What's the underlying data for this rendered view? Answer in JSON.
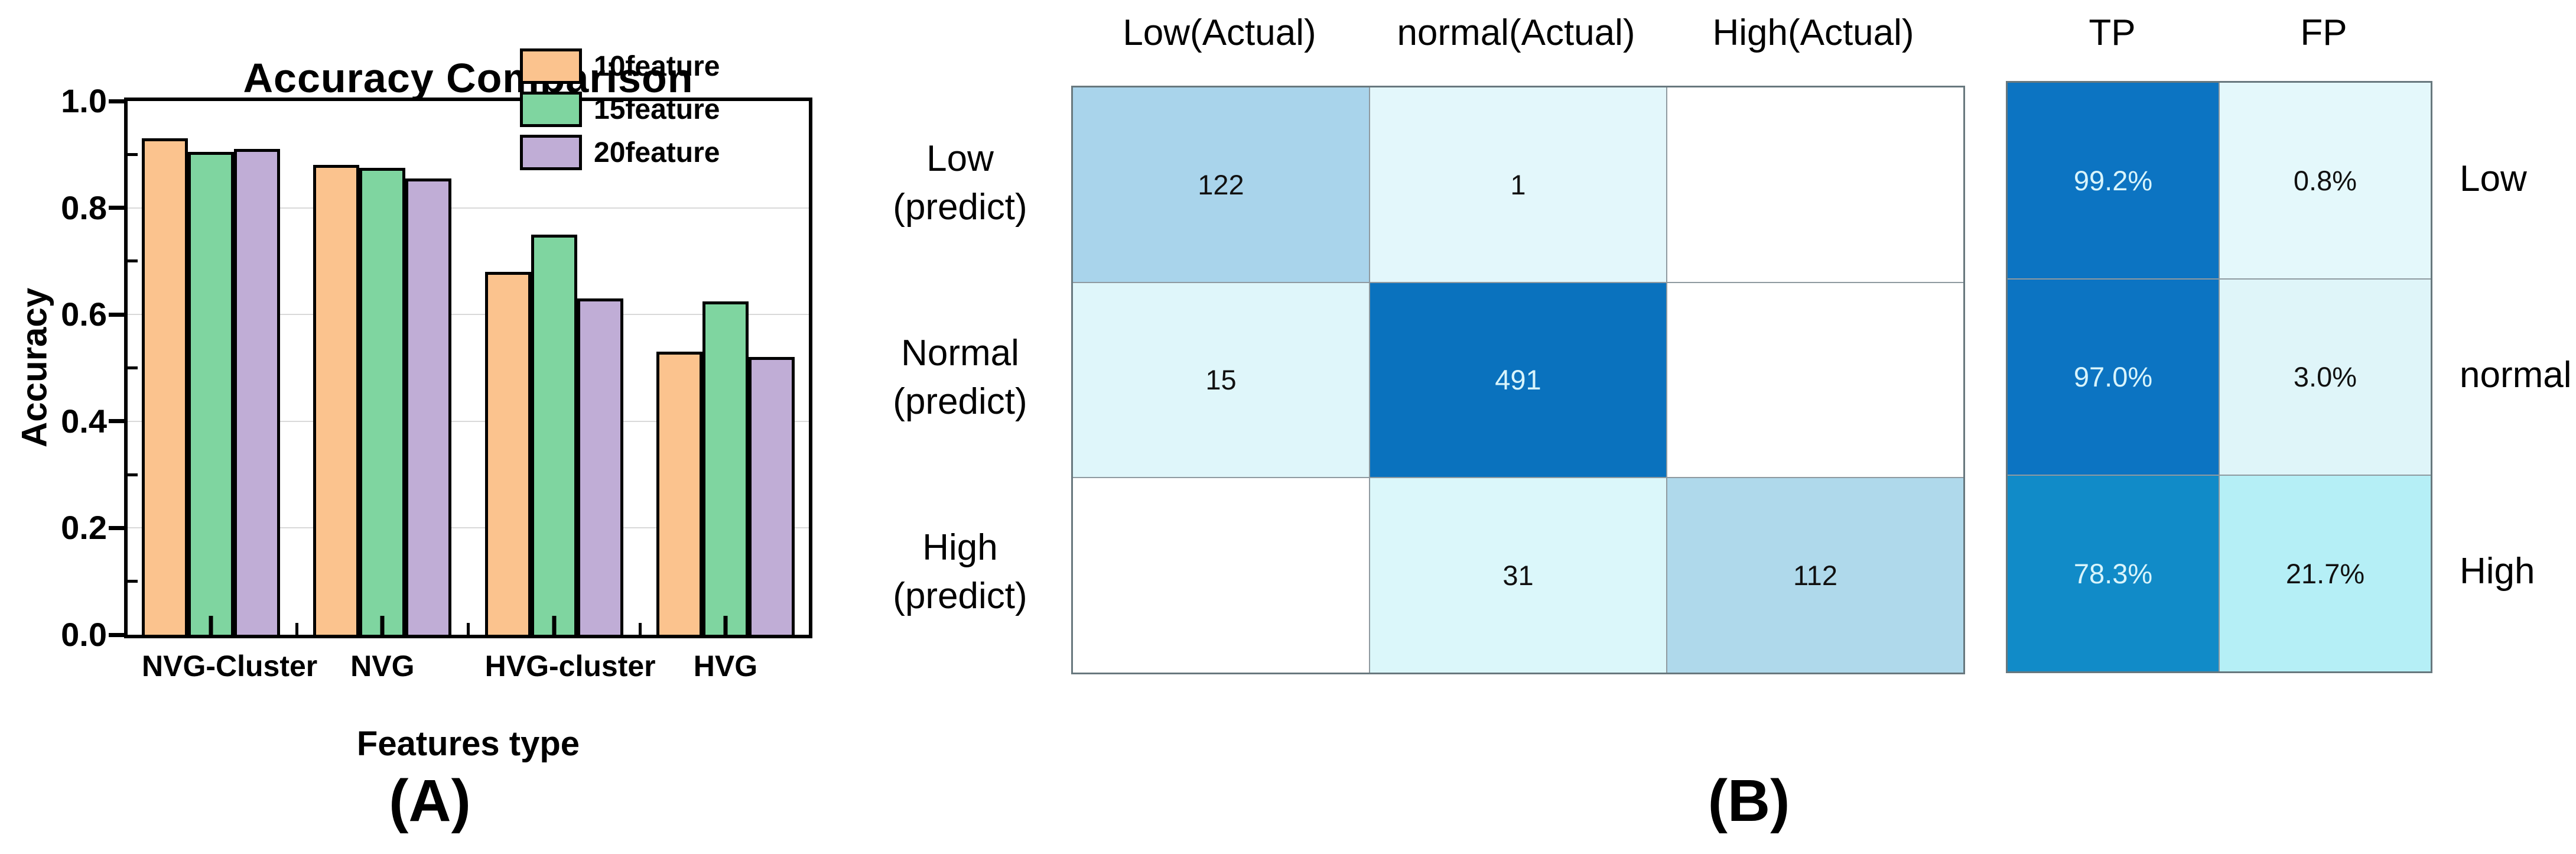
{
  "panel_labels": {
    "a": "(A)",
    "b": "(B)"
  },
  "chart_data": [
    {
      "type": "bar",
      "title": "Accuracy Comparison",
      "xlabel": "Features type",
      "ylabel": "Accuracy",
      "ylim": [
        0.0,
        1.0
      ],
      "yticks_labeled": [
        "0.0",
        "0.2",
        "0.4",
        "0.6",
        "0.8",
        "1.0"
      ],
      "minor_ytick_step": 0.1,
      "grid": "horizontal-major",
      "legend_position": "upper-right-inside",
      "categories": [
        "NVG-Cluster",
        "NVG",
        "HVG-cluster",
        "HVG"
      ],
      "series": [
        {
          "name": "10feature",
          "color": "#FBC38E",
          "values": [
            0.93,
            0.88,
            0.68,
            0.53
          ]
        },
        {
          "name": "15feature",
          "color": "#7FD5A0",
          "values": [
            0.905,
            0.875,
            0.75,
            0.625
          ]
        },
        {
          "name": "20feature",
          "color": "#C0ADD6",
          "values": [
            0.91,
            0.855,
            0.63,
            0.52
          ]
        }
      ]
    },
    {
      "type": "heatmap",
      "name": "confusion-matrix-counts",
      "col_headers": [
        "Low(Actual)",
        "normal(Actual)",
        "High(Actual)"
      ],
      "row_headers": [
        [
          "Low",
          "(predict)"
        ],
        [
          "Normal",
          "(predict)"
        ],
        [
          "High",
          "(predict)"
        ]
      ],
      "values": [
        [
          "122",
          "1",
          ""
        ],
        [
          "15",
          "491",
          ""
        ],
        [
          "",
          "31",
          "112"
        ]
      ],
      "cell_colors": [
        [
          "#A9D4EB",
          "#E3F7FB",
          "#FFFFFF"
        ],
        [
          "#DFF6FA",
          "#0A72BE",
          "#FFFFFF"
        ],
        [
          "#FFFFFF",
          "#DBF7FA",
          "#AFD9EB"
        ]
      ]
    },
    {
      "type": "heatmap",
      "name": "classification-rates",
      "col_headers": [
        "TP",
        "FP"
      ],
      "row_labels_right": [
        "Low",
        "normal",
        "High"
      ],
      "values": [
        [
          "99.2%",
          "0.8%"
        ],
        [
          "97.0%",
          "3.0%"
        ],
        [
          "78.3%",
          "21.7%"
        ]
      ],
      "cell_colors": [
        [
          "#0C74C2",
          "#E4F8FB"
        ],
        [
          "#0C74C2",
          "#DFF5F9"
        ],
        [
          "#118BC8",
          "#B5EFF6"
        ]
      ]
    }
  ]
}
